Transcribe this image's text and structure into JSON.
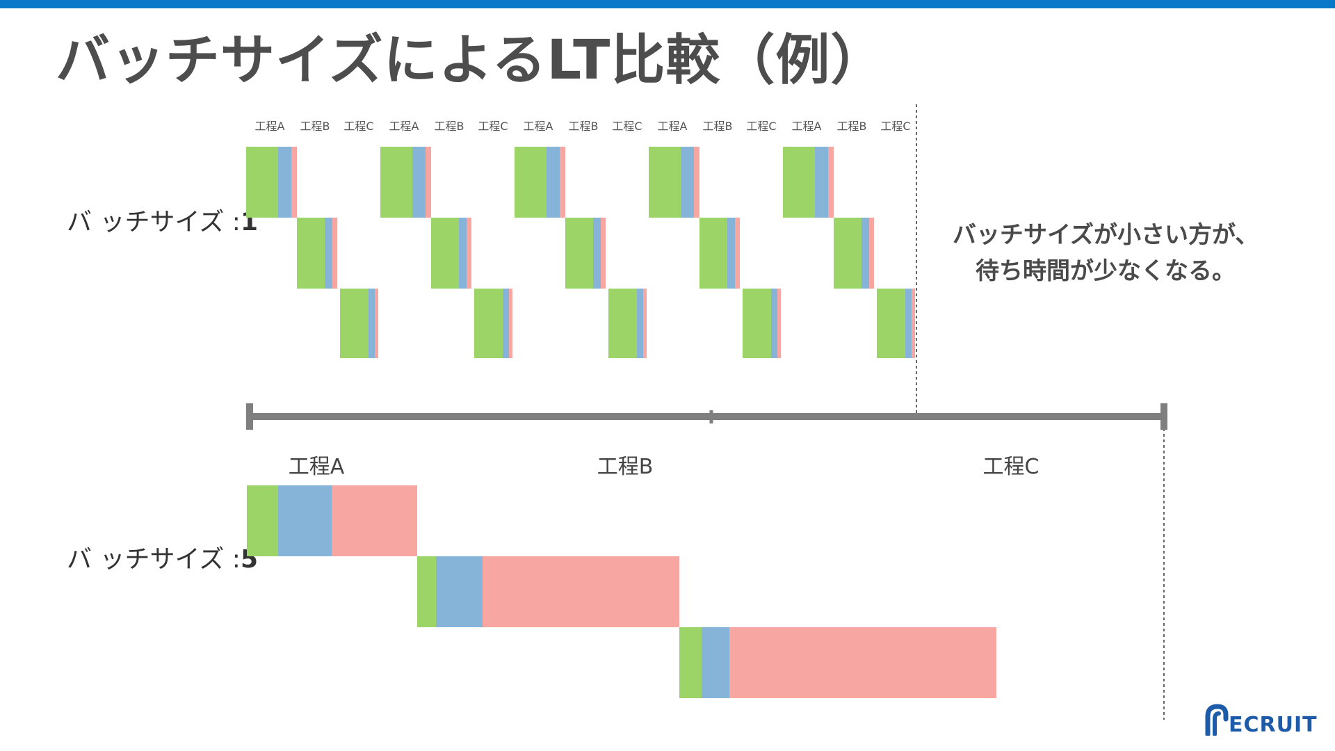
{
  "slide": {
    "title": "バッチサイズによるLT比較（例）",
    "row1_label_prefix": "バ ッチサイズ :",
    "row1_label_value": "1",
    "row2_label_prefix": "バ ッチサイズ :",
    "row2_label_value": "5",
    "note_line1": "バッチサイズが小さい方が、",
    "note_line2": "待ち時間が少なくなる。",
    "logo_text": "ECRUIT",
    "brand_color": "#0a78c8",
    "logo_color": "#1d5aa8"
  },
  "legend_colors": {
    "green": "#9dd468",
    "blue": "#86b3d8",
    "pink": "#f7a6a2",
    "timeline": "#7f7f7f"
  },
  "batch1": {
    "column_labels": [
      "工程A",
      "工程B",
      "工程C",
      "工程A",
      "工程B",
      "工程C",
      "工程A",
      "工程B",
      "工程C",
      "工程A",
      "工程B",
      "工程C",
      "工程A",
      "工程B",
      "工程C"
    ],
    "process_names": [
      "工程A",
      "工程B",
      "工程C"
    ],
    "batches": 5
  },
  "batch5": {
    "process_labels": [
      "工程A",
      "工程B",
      "工程C"
    ],
    "segments": [
      {
        "process": "工程A",
        "green": 45,
        "blue": 77,
        "pink": 123
      },
      {
        "process": "工程B",
        "green": 27,
        "blue": 67,
        "pink": 283
      },
      {
        "process": "工程C",
        "green": 32,
        "blue": 40,
        "pink": 384
      }
    ]
  }
}
